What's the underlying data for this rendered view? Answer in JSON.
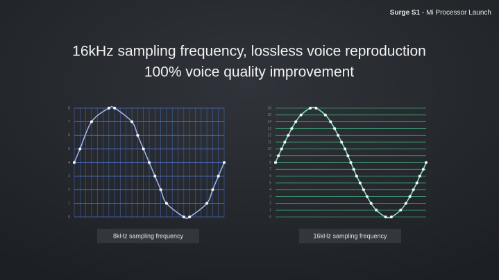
{
  "header": {
    "brand": "Surge S1",
    "separator": "-",
    "event": "Mi Processor Launch"
  },
  "title": [
    "16kHz sampling frequency, lossless voice reproduction",
    "100% voice quality improvement"
  ],
  "chart_data": [
    {
      "type": "scatter",
      "xlabel": "8kHz sampling frequency",
      "color": "#4c6fc4",
      "point_color": "#ffffff",
      "line_color": "#9db3ea",
      "vertical_grid": true,
      "grid": true,
      "x": [
        0,
        1,
        3,
        6,
        7,
        10,
        11,
        12,
        13,
        14,
        15,
        16,
        19,
        20,
        23,
        24,
        25,
        26
      ],
      "values": [
        4,
        5,
        7,
        8,
        8,
        7,
        6,
        5,
        4,
        3,
        2,
        1,
        0,
        0,
        1,
        2,
        3,
        4
      ],
      "xlim": [
        0,
        26
      ],
      "ylim": [
        0,
        8
      ],
      "yticks": [
        0,
        1,
        2,
        3,
        4,
        5,
        6,
        7,
        8
      ]
    },
    {
      "type": "scatter",
      "xlabel": "16kHz sampling frequency",
      "color": "#3f9a72",
      "point_color": "#ffffff",
      "line_color": "#7fe3c0",
      "vertical_grid": false,
      "grid": true,
      "x": [
        0,
        0.5,
        1.05,
        1.6,
        2.2,
        2.8,
        3.5,
        4.4,
        6,
        7,
        8.6,
        9.5,
        10.2,
        10.8,
        11.4,
        12,
        12.5,
        13,
        13.5,
        14,
        14.6,
        15.2,
        15.8,
        16.5,
        17.4,
        19,
        20,
        21.6,
        22.5,
        23.2,
        23.8,
        24.4,
        24.9,
        25.5,
        26
      ],
      "values": [
        8,
        9,
        10,
        11,
        12,
        13,
        14,
        15,
        16,
        16,
        15,
        14,
        13,
        12,
        11,
        10,
        9,
        8,
        7,
        6,
        5,
        4,
        3,
        2,
        1,
        0,
        0,
        1,
        2,
        3,
        4,
        5,
        6,
        7,
        8
      ],
      "xlim": [
        0,
        26
      ],
      "ylim": [
        0,
        16
      ],
      "yticks": [
        0,
        1,
        2,
        3,
        4,
        5,
        6,
        7,
        8,
        9,
        10,
        11,
        12,
        13,
        14,
        15,
        16
      ]
    }
  ]
}
